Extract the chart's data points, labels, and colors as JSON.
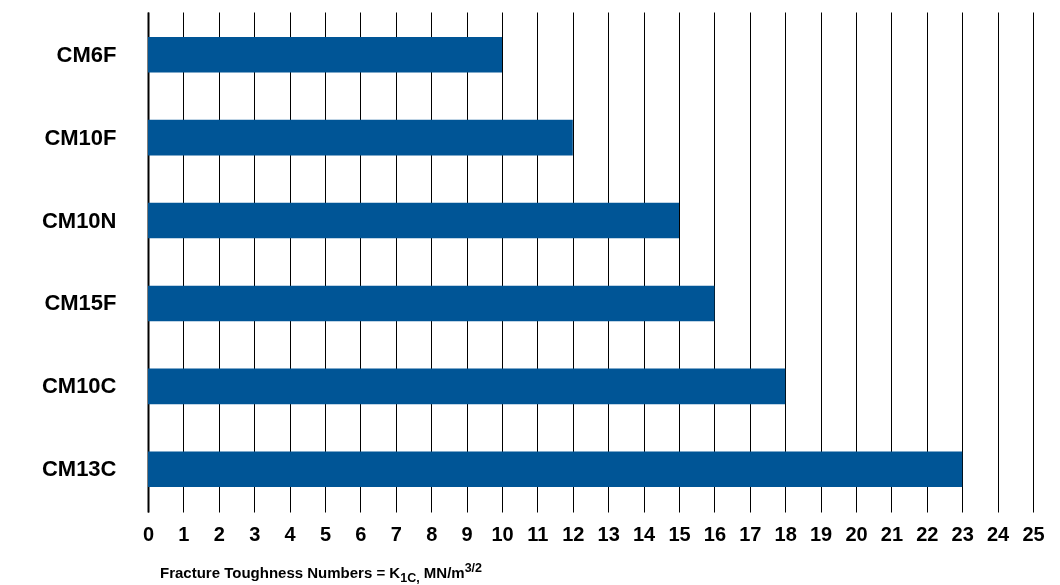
{
  "chart_data": {
    "type": "bar",
    "orientation": "horizontal",
    "xlabel": "Fracture Toughness Numbers = K$_{1C,}$ MN/m$^{3/2}$",
    "categories": [
      "CM6F",
      "CM10F",
      "CM10N",
      "CM15F",
      "CM10C",
      "CM13C"
    ],
    "values": [
      10,
      12,
      15,
      16,
      18,
      23
    ],
    "color": "#005596",
    "xlim": [
      0,
      25
    ],
    "xticks": [
      0,
      1,
      2,
      3,
      4,
      5,
      6,
      7,
      8,
      9,
      10,
      11,
      12,
      13,
      14,
      15,
      16,
      17,
      18,
      19,
      20,
      21,
      22,
      23,
      24,
      25
    ],
    "grid": "x"
  }
}
